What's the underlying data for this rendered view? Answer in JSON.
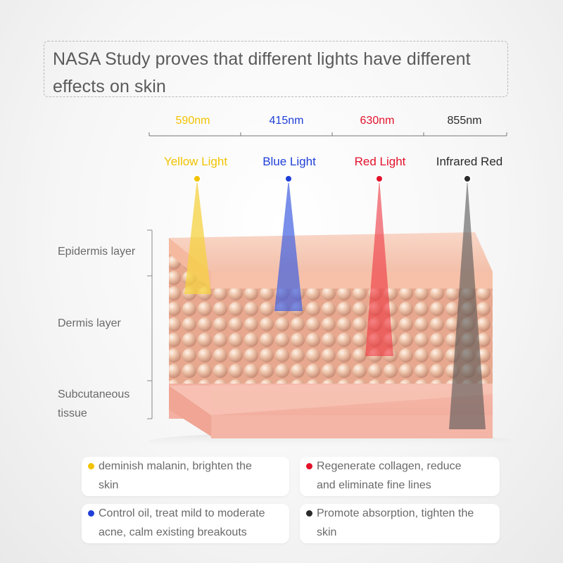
{
  "title": "NASA Study proves that different lights have different effects on skin",
  "wavelengths": [
    "590nm",
    "415nm",
    "630nm",
    "855nm"
  ],
  "lights": [
    "Yellow Light",
    "Blue Light",
    "Red Light",
    "Infrared Red"
  ],
  "colors": {
    "yellow": "#f2c300",
    "blue": "#1f3fd8",
    "red": "#e3122b",
    "infrared": "#2a2a2a",
    "skin_top": "#f4bfa9",
    "skin_side": "#f3b3a4"
  },
  "layers": {
    "epidermis": "Epidermis layer",
    "dermis": "Dermis layer",
    "subcutaneous_line1": "Subcutaneous",
    "subcutaneous_line2": "tissue"
  },
  "effects": {
    "yellow_line1": "deminish malanin, brighten the",
    "yellow_line2": "skin",
    "red_line1": "Regenerate collagen, reduce",
    "red_line2": "and eliminate fine lines",
    "blue_line1": "Control oil, treat mild to moderate",
    "blue_line2": "acne, calm existing breakouts",
    "infrared_line1": "Promote absorption, tighten the",
    "infrared_line2": "skin"
  }
}
